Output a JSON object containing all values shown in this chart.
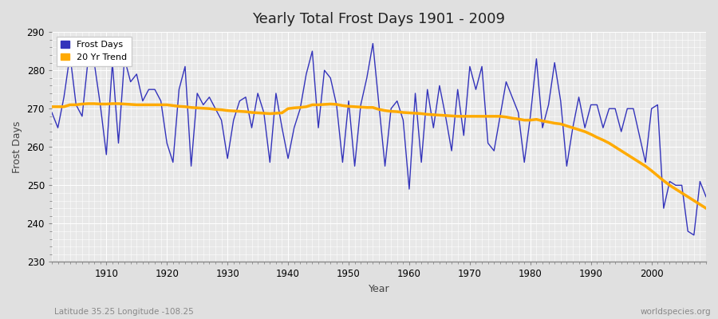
{
  "title": "Yearly Total Frost Days 1901 - 2009",
  "xlabel": "Year",
  "ylabel": "Frost Days",
  "footnote_left": "Latitude 35.25 Longitude -108.25",
  "footnote_right": "worldspecies.org",
  "ylim": [
    230,
    290
  ],
  "xlim": [
    1901,
    2009
  ],
  "yticks": [
    230,
    240,
    250,
    260,
    270,
    280,
    290
  ],
  "xticks": [
    1910,
    1920,
    1930,
    1940,
    1950,
    1960,
    1970,
    1980,
    1990,
    2000
  ],
  "frost_color": "#3333bb",
  "trend_color": "#ffaa00",
  "bg_color": "#e0e0e0",
  "plot_bg_color": "#e8e8e8",
  "grid_color": "#ffffff",
  "years": [
    1901,
    1902,
    1903,
    1904,
    1905,
    1906,
    1907,
    1908,
    1909,
    1910,
    1911,
    1912,
    1913,
    1914,
    1915,
    1916,
    1917,
    1918,
    1919,
    1920,
    1921,
    1922,
    1923,
    1924,
    1925,
    1926,
    1927,
    1928,
    1929,
    1930,
    1931,
    1932,
    1933,
    1934,
    1935,
    1936,
    1937,
    1938,
    1939,
    1940,
    1941,
    1942,
    1943,
    1944,
    1945,
    1946,
    1947,
    1948,
    1949,
    1950,
    1951,
    1952,
    1953,
    1954,
    1955,
    1956,
    1957,
    1958,
    1959,
    1960,
    1961,
    1962,
    1963,
    1964,
    1965,
    1966,
    1967,
    1968,
    1969,
    1970,
    1971,
    1972,
    1973,
    1974,
    1975,
    1976,
    1977,
    1978,
    1979,
    1980,
    1981,
    1982,
    1983,
    1984,
    1985,
    1986,
    1987,
    1988,
    1989,
    1990,
    1991,
    1992,
    1993,
    1994,
    1995,
    1996,
    1997,
    1998,
    1999,
    2000,
    2001,
    2002,
    2003,
    2004,
    2005,
    2006,
    2007,
    2008,
    2009
  ],
  "frost_days": [
    269,
    265,
    273,
    284,
    271,
    268,
    283,
    282,
    271,
    258,
    282,
    261,
    283,
    277,
    279,
    272,
    275,
    275,
    272,
    261,
    256,
    275,
    281,
    255,
    274,
    271,
    273,
    270,
    267,
    257,
    267,
    272,
    273,
    265,
    274,
    269,
    256,
    274,
    265,
    257,
    265,
    270,
    279,
    285,
    265,
    280,
    278,
    271,
    256,
    272,
    255,
    271,
    278,
    287,
    271,
    255,
    270,
    272,
    267,
    249,
    274,
    256,
    275,
    265,
    276,
    268,
    259,
    275,
    263,
    281,
    275,
    281,
    261,
    259,
    268,
    277,
    273,
    269,
    256,
    268,
    283,
    265,
    271,
    282,
    272,
    255,
    265,
    273,
    265,
    271,
    271,
    265,
    270,
    270,
    264,
    270,
    270,
    263,
    256,
    270,
    271,
    244,
    251,
    250,
    250,
    238,
    237,
    251,
    247
  ],
  "trend_values": [
    270.5,
    270.5,
    270.5,
    271.0,
    271.0,
    271.2,
    271.3,
    271.3,
    271.2,
    271.2,
    271.3,
    271.3,
    271.2,
    271.1,
    271.0,
    271.0,
    271.0,
    271.0,
    271.0,
    271.0,
    270.8,
    270.6,
    270.5,
    270.3,
    270.2,
    270.1,
    270.0,
    269.8,
    269.7,
    269.5,
    269.4,
    269.3,
    269.2,
    269.0,
    268.9,
    268.8,
    268.7,
    268.8,
    268.9,
    270.0,
    270.2,
    270.3,
    270.5,
    271.0,
    271.0,
    271.1,
    271.2,
    271.1,
    270.8,
    270.6,
    270.5,
    270.4,
    270.3,
    270.3,
    269.8,
    269.5,
    269.3,
    269.2,
    269.0,
    268.9,
    268.8,
    268.7,
    268.5,
    268.4,
    268.3,
    268.2,
    268.1,
    268.0,
    268.0,
    268.0,
    268.0,
    268.0,
    268.0,
    268.0,
    268.0,
    267.8,
    267.5,
    267.3,
    267.0,
    267.0,
    267.2,
    266.8,
    266.5,
    266.2,
    266.0,
    265.5,
    265.0,
    264.5,
    264.0,
    263.3,
    262.5,
    261.8,
    261.0,
    260.0,
    259.0,
    258.0,
    257.0,
    256.0,
    255.0,
    253.8,
    252.5,
    251.2,
    250.0,
    249.0,
    248.0,
    247.0,
    246.0,
    245.0,
    244.0
  ]
}
